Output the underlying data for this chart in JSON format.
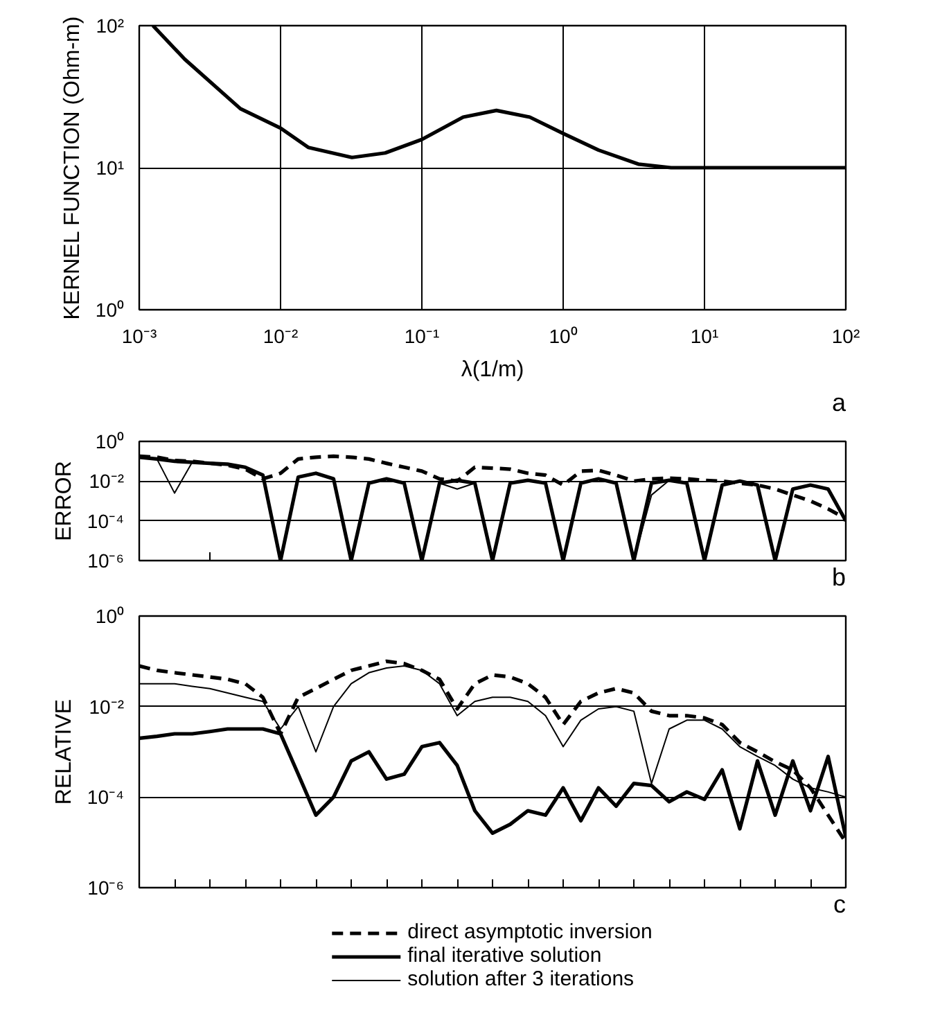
{
  "chart_data": [
    {
      "type": "line",
      "xlabel": "λ(1/m)",
      "ylabel": "KERNEL FUNCTION (Ohm-m)",
      "log": "xy",
      "grid": true,
      "annotations": [
        "a"
      ],
      "xlim": [
        0.001,
        100
      ],
      "ylim": [
        1,
        100
      ],
      "xticks": [
        {
          "value": 0.001,
          "label": "10⁻³"
        },
        {
          "value": 0.01,
          "label": "10⁻²"
        },
        {
          "value": 0.1,
          "label": "10⁻¹"
        },
        {
          "value": 1,
          "label": "10⁰"
        },
        {
          "value": 10,
          "label": "10¹"
        },
        {
          "value": 100,
          "label": "10²"
        }
      ],
      "yticks": [
        {
          "value": 1,
          "label": "10⁰"
        },
        {
          "value": 10,
          "label": "10¹"
        },
        {
          "value": 100,
          "label": "10²"
        }
      ],
      "x": [
        0.00125,
        0.0021,
        0.0052,
        0.01,
        0.0157,
        0.032,
        0.055,
        0.1,
        0.196,
        0.337,
        0.58,
        1.0,
        1.78,
        3.4,
        5.8,
        10,
        100
      ],
      "series": [
        {
          "color": "#000000",
          "line_style": "solid",
          "values": [
            100,
            58,
            26,
            19,
            13.9,
            11.8,
            12.7,
            15.8,
            22.7,
            25.3,
            22.7,
            17.4,
            13.3,
            10.6,
            10,
            10,
            10
          ]
        }
      ]
    },
    {
      "type": "line",
      "ylabel": "ERROR",
      "log": "y",
      "grid": "y",
      "tick_labels": "y",
      "annotations": [
        "b"
      ],
      "ylim": [
        1e-06,
        1
      ],
      "yticks": [
        {
          "value": 1e-06,
          "label": "10⁻⁶"
        },
        {
          "value": 0.0001,
          "label": "10⁻⁴"
        },
        {
          "value": 0.01,
          "label": "10⁻²"
        },
        {
          "value": 1,
          "label": "10⁰"
        }
      ],
      "categories": [
        null,
        null,
        null,
        null,
        null,
        null,
        null,
        null,
        null,
        null,
        null,
        null,
        null,
        null,
        null,
        null,
        null,
        null,
        null,
        null,
        null,
        null,
        null,
        null,
        null,
        null,
        null,
        null,
        null,
        null,
        null,
        null,
        null,
        null,
        null,
        null,
        null,
        null,
        null,
        null,
        null
      ],
      "series": [
        {
          "color": "#000000",
          "line_style": "dashed",
          "values": [
            0.18,
            0.16,
            0.11,
            0.1,
            0.079,
            0.063,
            0.04,
            0.013,
            0.025,
            0.13,
            0.16,
            0.18,
            0.16,
            0.13,
            0.079,
            0.05,
            0.032,
            0.013,
            0.01,
            0.05,
            0.045,
            0.04,
            0.025,
            0.02,
            0.0063,
            0.032,
            0.035,
            0.02,
            0.01,
            0.013,
            0.014,
            0.013,
            0.011,
            0.01,
            0.0079,
            0.0063,
            0.004,
            0.002,
            0.001,
            0.0004,
            0.00013
          ]
        },
        {
          "color": "#000000",
          "line_style": "solid",
          "values": [
            0.16,
            0.13,
            0.1,
            0.089,
            0.079,
            0.071,
            0.05,
            0.02,
            1e-06,
            0.016,
            0.025,
            0.013,
            1e-06,
            0.0079,
            0.013,
            0.0079,
            1e-06,
            0.0079,
            0.011,
            0.0079,
            1e-06,
            0.0079,
            0.011,
            0.0079,
            1e-06,
            0.0079,
            0.013,
            0.0079,
            1e-06,
            0.0079,
            0.011,
            0.0079,
            1e-06,
            0.0063,
            0.01,
            0.0063,
            1e-06,
            0.004,
            0.0063,
            0.004,
            0.0001
          ]
        },
        {
          "color": "#000000",
          "line_style": "solid",
          "values": [
            0.16,
            0.13,
            0.0025,
            0.089,
            0.079,
            0.071,
            0.05,
            0.02,
            1e-06,
            0.016,
            0.025,
            0.013,
            1e-06,
            0.0079,
            0.013,
            0.0079,
            1e-06,
            0.0079,
            0.004,
            0.0079,
            1e-06,
            0.0079,
            0.011,
            0.0079,
            1e-06,
            0.0079,
            0.013,
            0.0079,
            1e-06,
            0.002,
            0.011,
            0.0079,
            1e-06,
            0.0063,
            0.01,
            0.0063,
            1e-06,
            0.004,
            0.0063,
            0.004,
            0.0001
          ]
        }
      ]
    },
    {
      "type": "line",
      "ylabel": "RELATIVE",
      "log": "y",
      "grid": "y",
      "tick_labels": "y",
      "legend": "bottom",
      "annotations": [
        "c"
      ],
      "ylim": [
        1e-06,
        1
      ],
      "yticks": [
        {
          "value": 1e-06,
          "label": "10⁻⁶"
        },
        {
          "value": 0.0001,
          "label": "10⁻⁴"
        },
        {
          "value": 0.01,
          "label": "10⁻²"
        },
        {
          "value": 1,
          "label": "10⁰"
        }
      ],
      "categories": [
        null,
        null,
        null,
        null,
        null,
        null,
        null,
        null,
        null,
        null,
        null,
        null,
        null,
        null,
        null,
        null,
        null,
        null,
        null,
        null,
        null,
        null,
        null,
        null,
        null,
        null,
        null,
        null,
        null,
        null,
        null,
        null,
        null,
        null,
        null,
        null,
        null,
        null,
        null,
        null,
        null
      ],
      "series": [
        {
          "name": "direct asymptotic inversion",
          "color": "#000000",
          "line_style": "dashed",
          "values": [
            0.079,
            0.063,
            0.056,
            0.05,
            0.045,
            0.04,
            0.032,
            0.016,
            0.0025,
            0.016,
            0.025,
            0.04,
            0.063,
            0.079,
            0.1,
            0.089,
            0.063,
            0.04,
            0.0089,
            0.032,
            0.05,
            0.045,
            0.032,
            0.016,
            0.004,
            0.013,
            0.02,
            0.025,
            0.02,
            0.0079,
            0.0063,
            0.0063,
            0.0056,
            0.004,
            0.0016,
            0.001,
            0.0006,
            0.0004,
            0.00016,
            4e-05,
            1e-05
          ]
        },
        {
          "name": "final iterative solution",
          "color": "#000000",
          "line_style": "solid",
          "values": [
            0.002,
            0.0022,
            0.0025,
            0.0025,
            0.0028,
            0.0032,
            0.0032,
            0.0032,
            0.0025,
            0.00032,
            4e-05,
            0.0001,
            0.00063,
            0.001,
            0.00025,
            0.00032,
            0.0013,
            0.0016,
            0.0005,
            5e-05,
            1.6e-05,
            2.5e-05,
            5e-05,
            4e-05,
            0.00016,
            3e-05,
            0.00016,
            6.3e-05,
            0.0002,
            0.00018,
            7.9e-05,
            0.00013,
            8.9e-05,
            0.0004,
            2e-05,
            0.00063,
            4e-05,
            0.00063,
            5e-05,
            0.00079,
            1.3e-05
          ]
        },
        {
          "name": "solution after 3 iterations",
          "color": "#000000",
          "line_style": "solid",
          "values": [
            0.032,
            0.032,
            0.032,
            0.028,
            0.025,
            0.02,
            0.016,
            0.013,
            0.0032,
            0.01,
            0.001,
            0.01,
            0.032,
            0.056,
            0.071,
            0.079,
            0.063,
            0.032,
            0.0063,
            0.013,
            0.016,
            0.016,
            0.013,
            0.0063,
            0.0013,
            0.005,
            0.0089,
            0.01,
            0.0079,
            0.0002,
            0.0032,
            0.005,
            0.005,
            0.0032,
            0.0013,
            0.00079,
            0.0005,
            0.00025,
            0.00016,
            0.00013,
            0.0001
          ]
        }
      ]
    }
  ]
}
